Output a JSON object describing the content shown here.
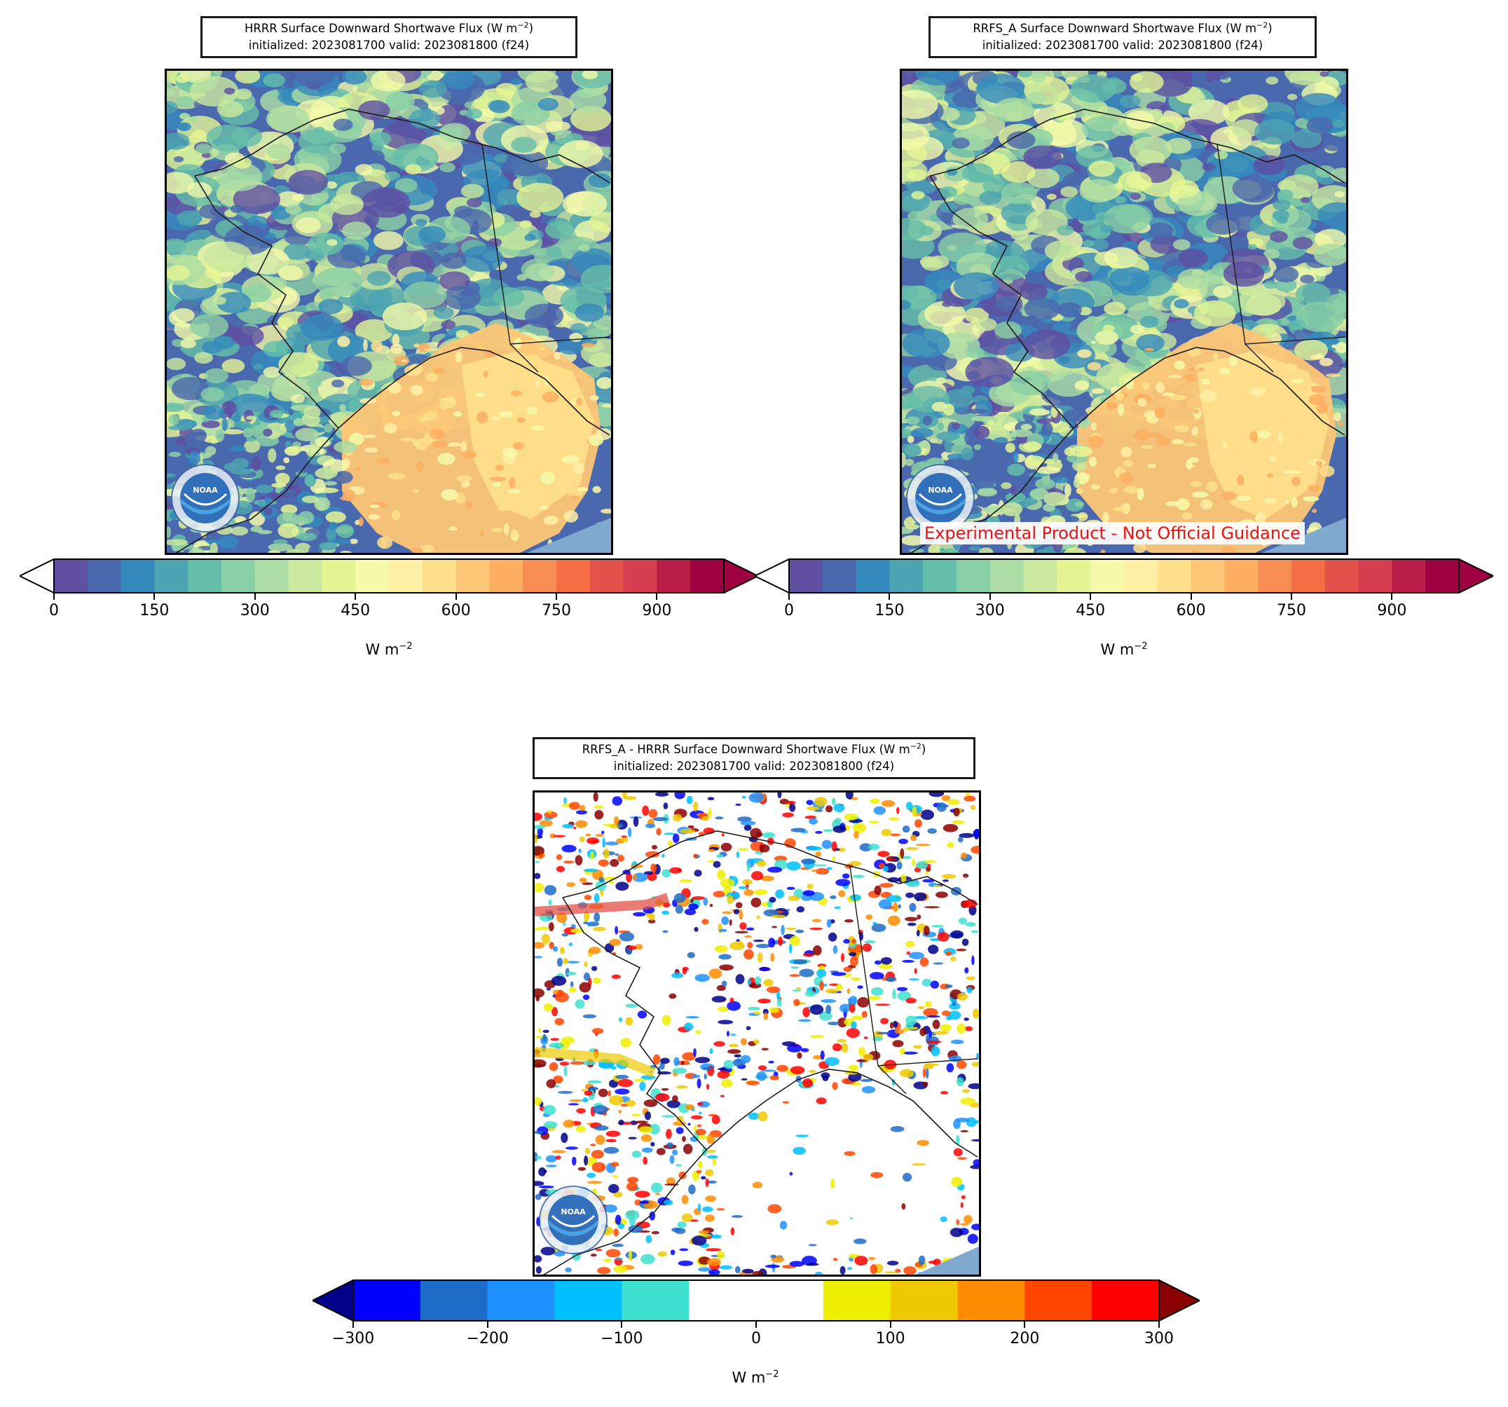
{
  "panels": {
    "hrrr": {
      "title_line1": "HRRR Surface Downward Shortwave Flux (W m",
      "title_exp": "−2",
      "title_line1_end": ")",
      "title_line2": "initialized: 2023081700 valid: 2023081800 (f24)",
      "colorbar": {
        "ticks": [
          "0",
          "150",
          "300",
          "450",
          "600",
          "750",
          "900"
        ],
        "unit": "W m",
        "unit_exp": "−2"
      }
    },
    "rrfs": {
      "title_line1": "RRFS_A Surface Downward Shortwave Flux (W m",
      "title_exp": "−2",
      "title_line1_end": ")",
      "title_line2": "initialized: 2023081700 valid: 2023081800 (f24)",
      "disclaimer": "Experimental Product - Not Official Guidance",
      "colorbar": {
        "ticks": [
          "0",
          "150",
          "300",
          "450",
          "600",
          "750",
          "900"
        ],
        "unit": "W m",
        "unit_exp": "−2"
      }
    },
    "diff": {
      "title_line1": "RRFS_A - HRRR Surface Downward Shortwave Flux (W m",
      "title_exp": "−2",
      "title_line1_end": ")",
      "title_line2": "initialized: 2023081700 valid: 2023081800 (f24)",
      "colorbar": {
        "ticks": [
          "−300",
          "−200",
          "−100",
          "0",
          "100",
          "200",
          "300"
        ],
        "unit": "W m",
        "unit_exp": "−2"
      }
    }
  },
  "logo_text": "NOAA",
  "colors": {
    "flux_scale": [
      "#5e4fa2",
      "#4a68ad",
      "#3489bd",
      "#4ca4b2",
      "#65bea9",
      "#89cfa5",
      "#abdda4",
      "#cbe99e",
      "#e5f594",
      "#f4faa9",
      "#fff0a6",
      "#fee08b",
      "#fdc676",
      "#fdae61",
      "#f98e52",
      "#f46d43",
      "#e2514a",
      "#d53e4f",
      "#b91e48",
      "#9e0142"
    ],
    "flux_under": "#ffffff",
    "diff_scale": [
      "#0000ff",
      "#1e6cc8",
      "#1e90ff",
      "#00bfff",
      "#40e0d0",
      "#ffffff",
      "#ffffff",
      "#eeee00",
      "#eec900",
      "#ff8c00",
      "#ff4500",
      "#ff0000"
    ],
    "diff_under": "#00008b",
    "diff_over": "#8b0000"
  }
}
